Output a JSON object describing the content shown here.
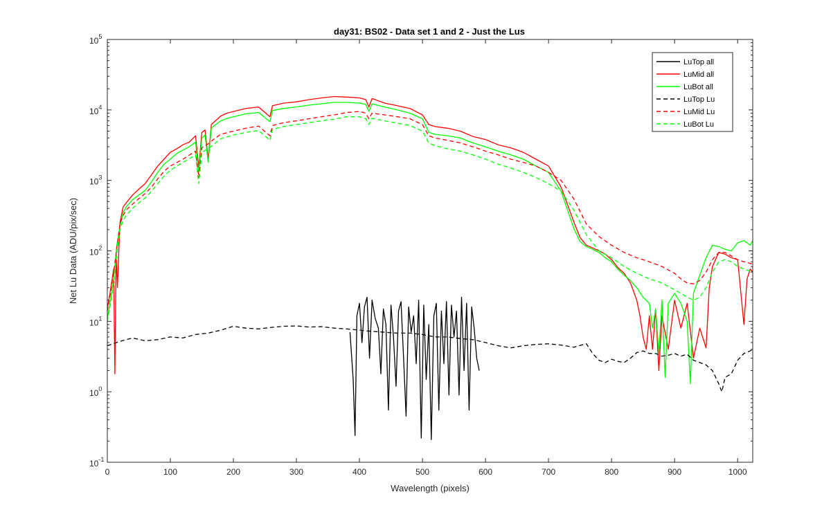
{
  "chart_data": {
    "type": "line",
    "title": "day31: BS02 - Data set 1 and 2 - Just the Lus",
    "xlabel": "Wavelength (pixels)",
    "ylabel": "Net Lu Data (ADU/pix/sec)",
    "xlim": [
      0,
      1024
    ],
    "ylim": [
      0.1,
      100000
    ],
    "yscale": "log",
    "grid": false,
    "legend_position": "top-right",
    "x_ticks": [
      0,
      100,
      200,
      300,
      400,
      500,
      600,
      700,
      800,
      900,
      1000
    ],
    "x_tick_labels": [
      "0",
      "100",
      "200",
      "300",
      "400",
      "500",
      "600",
      "700",
      "800",
      "900",
      "1000"
    ],
    "y_ticks": [
      0.1,
      1,
      10,
      100,
      1000,
      10000,
      100000
    ],
    "y_tick_bases": [
      "10",
      "10",
      "10",
      "10",
      "10",
      "10",
      "10"
    ],
    "y_tick_exponents": [
      "-1",
      "0",
      "1",
      "2",
      "3",
      "4",
      "5"
    ],
    "series": [
      {
        "name": "LuTop  all",
        "color": "#000000",
        "style": "solid",
        "x": [
          385,
          390,
          393,
          396,
          400,
          404,
          408,
          412,
          416,
          420,
          425,
          430,
          434,
          438,
          442,
          446,
          450,
          454,
          458,
          462,
          466,
          470,
          474,
          478,
          482,
          486,
          490,
          494,
          498,
          502,
          506,
          510,
          514,
          518,
          522,
          526,
          530,
          534,
          538,
          542,
          546,
          550,
          554,
          558,
          562,
          566,
          570,
          574,
          578,
          582,
          586,
          590
        ],
        "y": [
          7,
          1.5,
          0.24,
          12,
          18,
          5,
          16,
          22,
          3,
          20,
          11,
          8,
          1.8,
          15,
          9,
          0.55,
          17,
          6,
          1.2,
          14,
          19,
          3,
          0.45,
          16,
          7,
          12,
          2.5,
          20,
          0.22,
          17,
          1.5,
          9,
          0.21,
          12,
          18,
          0.55,
          14,
          2.5,
          19,
          0.9,
          17,
          6,
          14,
          0.9,
          22,
          2,
          18,
          0.55,
          16,
          8,
          3,
          2
        ]
      },
      {
        "name": "LuMid  all",
        "color": "#ff0000",
        "style": "solid",
        "x": [
          0,
          5,
          10,
          12,
          14,
          16,
          20,
          25,
          30,
          40,
          50,
          60,
          70,
          80,
          90,
          100,
          110,
          120,
          130,
          140,
          145,
          150,
          155,
          160,
          165,
          170,
          180,
          190,
          200,
          220,
          240,
          258,
          262,
          280,
          300,
          320,
          340,
          360,
          380,
          400,
          410,
          415,
          420,
          440,
          460,
          480,
          500,
          510,
          520,
          540,
          560,
          580,
          600,
          620,
          640,
          660,
          680,
          700,
          720,
          740,
          750,
          760,
          770,
          780,
          790,
          800,
          810,
          820,
          830,
          840,
          845,
          850,
          855,
          860,
          865,
          870,
          875,
          880,
          890,
          900,
          910,
          920,
          930,
          940,
          950,
          955,
          960,
          970,
          980,
          990,
          1000,
          1010,
          1015,
          1020,
          1024
        ],
        "y": [
          15,
          28,
          55,
          1.8,
          90,
          30,
          250,
          420,
          480,
          620,
          750,
          900,
          1200,
          1600,
          2000,
          2500,
          2800,
          3200,
          3500,
          4300,
          1500,
          4800,
          5200,
          2000,
          6200,
          6800,
          8200,
          9000,
          9500,
          10500,
          11000,
          8000,
          11500,
          12500,
          13000,
          14000,
          14800,
          15500,
          15200,
          14800,
          14000,
          11000,
          14500,
          12500,
          11500,
          10500,
          8500,
          6200,
          5800,
          5500,
          5000,
          4200,
          3800,
          3200,
          2900,
          2500,
          2000,
          1600,
          800,
          260,
          155,
          120,
          110,
          100,
          90,
          75,
          58,
          48,
          35,
          20,
          12,
          6,
          4,
          12,
          4,
          15,
          2,
          12,
          4,
          20,
          8,
          18,
          3,
          8,
          4.2,
          30,
          60,
          95,
          90,
          80,
          75,
          9,
          40,
          55,
          50
        ]
      },
      {
        "name": "LuBot  all",
        "color": "#00ff00",
        "style": "solid",
        "x": [
          0,
          5,
          10,
          15,
          20,
          25,
          30,
          40,
          50,
          60,
          70,
          80,
          90,
          100,
          110,
          120,
          130,
          140,
          145,
          150,
          155,
          160,
          165,
          170,
          180,
          190,
          200,
          220,
          240,
          258,
          262,
          280,
          300,
          320,
          340,
          360,
          380,
          400,
          410,
          415,
          420,
          440,
          460,
          480,
          500,
          510,
          520,
          540,
          560,
          580,
          600,
          620,
          640,
          660,
          680,
          700,
          720,
          740,
          750,
          760,
          770,
          780,
          790,
          800,
          810,
          820,
          830,
          840,
          850,
          860,
          865,
          870,
          875,
          880,
          885,
          890,
          900,
          910,
          920,
          925,
          930,
          940,
          950,
          960,
          970,
          980,
          990,
          1000,
          1010,
          1020,
          1024
        ],
        "y": [
          11,
          20,
          40,
          120,
          220,
          350,
          420,
          530,
          620,
          720,
          950,
          1300,
          1700,
          2000,
          2400,
          2700,
          3000,
          3500,
          1300,
          4000,
          4400,
          1800,
          5500,
          6000,
          7000,
          7600,
          8000,
          8800,
          9200,
          6800,
          9800,
          10500,
          11000,
          11700,
          12200,
          12800,
          12800,
          12500,
          12000,
          9500,
          12200,
          11000,
          10000,
          9000,
          7500,
          4800,
          4500,
          4300,
          4000,
          3400,
          3000,
          2600,
          2300,
          2000,
          1600,
          1300,
          700,
          210,
          135,
          115,
          105,
          95,
          80,
          70,
          55,
          45,
          38,
          30,
          22,
          18,
          8,
          15,
          3.5,
          20,
          1.6,
          18,
          25,
          18,
          10,
          1.3,
          25,
          45,
          80,
          120,
          115,
          105,
          100,
          130,
          140,
          120,
          140
        ]
      },
      {
        "name": "LuTop  Lu",
        "color": "#000000",
        "style": "dashed",
        "x": [
          0,
          20,
          40,
          60,
          80,
          100,
          120,
          140,
          160,
          180,
          200,
          220,
          240,
          260,
          280,
          300,
          320,
          340,
          360,
          380,
          400,
          420,
          440,
          460,
          480,
          500,
          520,
          540,
          560,
          580,
          600,
          620,
          640,
          660,
          680,
          700,
          720,
          740,
          760,
          770,
          780,
          790,
          800,
          810,
          820,
          830,
          840,
          850,
          860,
          870,
          880,
          890,
          900,
          910,
          920,
          930,
          940,
          950,
          960,
          970,
          975,
          980,
          990,
          1000,
          1010,
          1020,
          1024
        ],
        "y": [
          4.5,
          5.2,
          5.8,
          5.3,
          5.5,
          6,
          5.8,
          6.5,
          6.8,
          7.5,
          8.5,
          8,
          7.8,
          8.2,
          8.5,
          8.6,
          8.3,
          8.4,
          8,
          7.8,
          7.5,
          7.2,
          7,
          6.8,
          6.8,
          6.5,
          6,
          6,
          5.7,
          5.5,
          5,
          4.5,
          4.2,
          4.5,
          4.7,
          4.8,
          4.6,
          4.3,
          4.8,
          3.5,
          2.8,
          2.6,
          2.9,
          2.7,
          2.6,
          3,
          3.6,
          3.8,
          3.5,
          3.5,
          3.2,
          3.3,
          3.5,
          3.2,
          3.4,
          2.8,
          2.6,
          2.4,
          2,
          1.3,
          1,
          1.6,
          1.8,
          2.8,
          3.5,
          3.8,
          4
        ]
      },
      {
        "name": "LuMid  Lu",
        "color": "#ff0000",
        "style": "dashed",
        "x": [
          0,
          5,
          10,
          15,
          20,
          25,
          30,
          40,
          50,
          60,
          70,
          80,
          90,
          100,
          120,
          140,
          145,
          150,
          160,
          170,
          180,
          200,
          220,
          240,
          258,
          262,
          280,
          300,
          320,
          340,
          360,
          380,
          400,
          410,
          415,
          420,
          440,
          460,
          480,
          500,
          510,
          520,
          540,
          560,
          580,
          600,
          620,
          640,
          660,
          680,
          700,
          720,
          740,
          760,
          780,
          800,
          820,
          840,
          860,
          880,
          900,
          910,
          920,
          930,
          940,
          950,
          960,
          970,
          980,
          990,
          1000,
          1010,
          1024
        ],
        "y": [
          14,
          25,
          50,
          110,
          240,
          320,
          380,
          460,
          550,
          650,
          800,
          1050,
          1350,
          1600,
          2000,
          2600,
          1100,
          2900,
          3300,
          3900,
          4500,
          5000,
          5500,
          5900,
          4300,
          6000,
          6600,
          7000,
          7500,
          8000,
          8500,
          9200,
          9500,
          9000,
          7500,
          9000,
          8500,
          8000,
          7500,
          6200,
          4300,
          4000,
          3700,
          3400,
          3000,
          2600,
          2300,
          2000,
          1800,
          1600,
          1300,
          1000,
          550,
          240,
          160,
          120,
          95,
          80,
          70,
          60,
          48,
          40,
          35,
          34,
          38,
          50,
          75,
          95,
          95,
          85,
          75,
          70,
          65
        ]
      },
      {
        "name": "LuBot  Lu",
        "color": "#00ff00",
        "style": "dashed",
        "x": [
          0,
          5,
          10,
          15,
          20,
          25,
          30,
          40,
          50,
          60,
          70,
          80,
          90,
          100,
          120,
          140,
          145,
          150,
          160,
          170,
          180,
          200,
          220,
          240,
          258,
          262,
          280,
          300,
          320,
          340,
          360,
          380,
          400,
          410,
          415,
          420,
          440,
          460,
          480,
          500,
          510,
          520,
          540,
          560,
          580,
          600,
          620,
          640,
          660,
          680,
          700,
          720,
          740,
          760,
          780,
          800,
          820,
          840,
          860,
          880,
          900,
          910,
          920,
          930,
          940,
          950,
          960,
          970,
          980,
          990,
          1000,
          1010,
          1024
        ],
        "y": [
          10,
          18,
          35,
          90,
          200,
          270,
          320,
          400,
          480,
          560,
          700,
          900,
          1150,
          1400,
          1800,
          2300,
          900,
          2500,
          2800,
          3300,
          3900,
          4400,
          4800,
          5100,
          3700,
          5300,
          5800,
          6200,
          6600,
          7000,
          7400,
          8000,
          8000,
          7500,
          6200,
          7600,
          7000,
          6500,
          6000,
          5000,
          3400,
          3100,
          2800,
          2600,
          2300,
          2000,
          1700,
          1500,
          1300,
          1100,
          900,
          700,
          380,
          170,
          100,
          80,
          60,
          48,
          40,
          35,
          28,
          25,
          22,
          20,
          22,
          30,
          50,
          70,
          75,
          70,
          60,
          55,
          50
        ]
      }
    ]
  }
}
